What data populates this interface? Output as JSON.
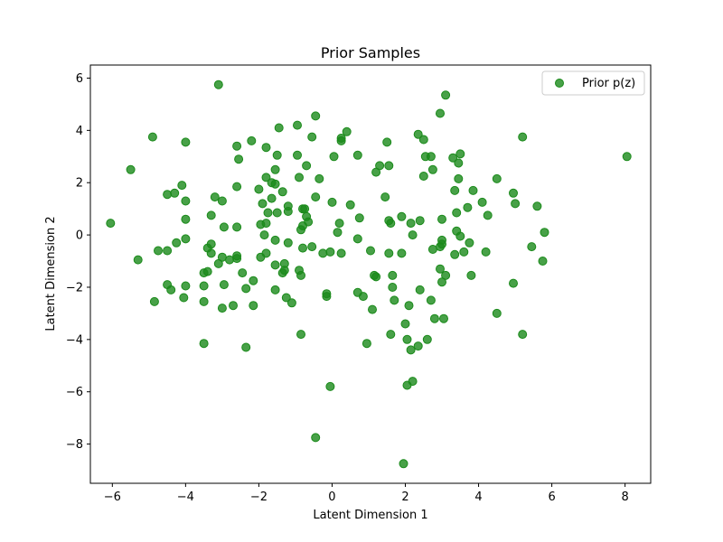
{
  "chart_data": {
    "type": "scatter",
    "title": "Prior Samples",
    "xlabel": "Latent Dimension 1",
    "ylabel": "Latent Dimension 2",
    "xlim": [
      -6.6,
      8.7
    ],
    "ylim": [
      -9.5,
      6.5
    ],
    "xticks": [
      -6,
      -4,
      -2,
      0,
      2,
      4,
      6,
      8
    ],
    "yticks": [
      -8,
      -6,
      -4,
      -2,
      0,
      2,
      4,
      6
    ],
    "xtick_labels": [
      "−6",
      "−4",
      "−2",
      "0",
      "2",
      "4",
      "6",
      "8"
    ],
    "ytick_labels": [
      "−8",
      "−6",
      "−4",
      "−2",
      "0",
      "2",
      "4",
      "6"
    ],
    "grid": false,
    "legend_position": "top-right",
    "series": [
      {
        "name": "Prior p(z)",
        "color": "#1a8a1a",
        "points": [
          [
            -3.1,
            5.75
          ],
          [
            3.1,
            5.35
          ],
          [
            -0.45,
            4.55
          ],
          [
            2.95,
            4.65
          ],
          [
            -4.9,
            3.75
          ],
          [
            -4.0,
            3.55
          ],
          [
            -1.45,
            4.1
          ],
          [
            -0.95,
            4.2
          ],
          [
            0.4,
            3.95
          ],
          [
            0.25,
            3.7
          ],
          [
            0.25,
            3.6
          ],
          [
            -0.55,
            3.75
          ],
          [
            1.5,
            3.55
          ],
          [
            2.35,
            3.85
          ],
          [
            2.5,
            3.65
          ],
          [
            -2.2,
            3.6
          ],
          [
            -1.8,
            3.35
          ],
          [
            -2.6,
            3.4
          ],
          [
            -1.5,
            3.05
          ],
          [
            -0.95,
            3.05
          ],
          [
            0.05,
            3.0
          ],
          [
            0.7,
            3.05
          ],
          [
            2.55,
            3.0
          ],
          [
            2.7,
            3.0
          ],
          [
            3.3,
            2.95
          ],
          [
            3.5,
            3.1
          ],
          [
            5.2,
            3.75
          ],
          [
            8.05,
            3.0
          ],
          [
            -5.5,
            2.5
          ],
          [
            -2.55,
            2.9
          ],
          [
            -1.55,
            2.5
          ],
          [
            -0.7,
            2.65
          ],
          [
            1.3,
            2.65
          ],
          [
            1.55,
            2.65
          ],
          [
            2.5,
            2.25
          ],
          [
            2.75,
            2.5
          ],
          [
            3.45,
            2.75
          ],
          [
            1.2,
            2.4
          ],
          [
            3.45,
            2.15
          ],
          [
            4.5,
            2.15
          ],
          [
            -4.1,
            1.9
          ],
          [
            -2.6,
            1.85
          ],
          [
            -2.0,
            1.75
          ],
          [
            -1.8,
            2.2
          ],
          [
            -1.65,
            2.0
          ],
          [
            -1.55,
            1.95
          ],
          [
            -1.35,
            1.65
          ],
          [
            -0.9,
            2.2
          ],
          [
            -0.35,
            2.15
          ],
          [
            3.35,
            1.7
          ],
          [
            3.85,
            1.7
          ],
          [
            4.95,
            1.6
          ],
          [
            -4.5,
            1.55
          ],
          [
            -4.3,
            1.6
          ],
          [
            -4.0,
            1.3
          ],
          [
            -3.2,
            1.45
          ],
          [
            -3.0,
            1.3
          ],
          [
            -1.9,
            1.2
          ],
          [
            -1.65,
            1.4
          ],
          [
            -1.2,
            1.1
          ],
          [
            -0.8,
            1.0
          ],
          [
            -0.75,
            1.0
          ],
          [
            -0.45,
            1.45
          ],
          [
            0.0,
            1.25
          ],
          [
            0.5,
            1.15
          ],
          [
            1.45,
            1.45
          ],
          [
            4.1,
            1.25
          ],
          [
            5.0,
            1.2
          ],
          [
            3.7,
            1.05
          ],
          [
            5.6,
            1.1
          ],
          [
            -3.3,
            0.75
          ],
          [
            -4.0,
            0.6
          ],
          [
            -2.6,
            0.3
          ],
          [
            -2.95,
            0.3
          ],
          [
            -1.95,
            0.4
          ],
          [
            -1.8,
            0.45
          ],
          [
            -1.75,
            0.85
          ],
          [
            -1.5,
            0.85
          ],
          [
            -1.2,
            0.9
          ],
          [
            -0.7,
            0.7
          ],
          [
            -0.65,
            0.5
          ],
          [
            -0.8,
            0.35
          ],
          [
            -0.85,
            0.2
          ],
          [
            0.2,
            0.45
          ],
          [
            0.75,
            0.65
          ],
          [
            1.55,
            0.55
          ],
          [
            1.6,
            0.45
          ],
          [
            1.9,
            0.7
          ],
          [
            2.15,
            0.45
          ],
          [
            2.4,
            0.55
          ],
          [
            3.0,
            0.6
          ],
          [
            3.4,
            0.85
          ],
          [
            4.25,
            0.75
          ],
          [
            -6.05,
            0.45
          ],
          [
            -1.85,
            0.0
          ],
          [
            -1.55,
            -0.2
          ],
          [
            -1.2,
            -0.3
          ],
          [
            -0.25,
            -0.7
          ],
          [
            0.15,
            0.1
          ],
          [
            0.7,
            -0.15
          ],
          [
            2.2,
            0.0
          ],
          [
            3.0,
            -0.2
          ],
          [
            3.4,
            0.15
          ],
          [
            3.5,
            -0.05
          ],
          [
            5.8,
            0.1
          ],
          [
            -4.75,
            -0.6
          ],
          [
            -4.5,
            -0.6
          ],
          [
            -4.25,
            -0.3
          ],
          [
            -4.0,
            -0.15
          ],
          [
            -3.4,
            -0.5
          ],
          [
            -3.3,
            -0.35
          ],
          [
            -3.3,
            -0.7
          ],
          [
            -1.8,
            -0.7
          ],
          [
            -0.8,
            -0.5
          ],
          [
            -0.55,
            -0.45
          ],
          [
            -0.05,
            -0.65
          ],
          [
            0.25,
            -0.7
          ],
          [
            1.05,
            -0.6
          ],
          [
            1.55,
            -0.7
          ],
          [
            1.9,
            -0.7
          ],
          [
            2.75,
            -0.55
          ],
          [
            2.95,
            -0.45
          ],
          [
            3.0,
            -0.35
          ],
          [
            3.35,
            -0.75
          ],
          [
            3.6,
            -0.65
          ],
          [
            3.75,
            -0.3
          ],
          [
            4.2,
            -0.65
          ],
          [
            5.45,
            -0.45
          ],
          [
            -5.3,
            -0.95
          ],
          [
            -3.0,
            -0.85
          ],
          [
            -2.8,
            -0.95
          ],
          [
            -2.6,
            -0.9
          ],
          [
            -2.6,
            -0.8
          ],
          [
            -3.1,
            -1.1
          ],
          [
            -2.45,
            -1.45
          ],
          [
            -1.95,
            -0.85
          ],
          [
            -1.55,
            -1.15
          ],
          [
            -1.3,
            -1.1
          ],
          [
            -1.3,
            -1.35
          ],
          [
            -1.35,
            -1.45
          ],
          [
            -0.9,
            -1.35
          ],
          [
            -0.85,
            -1.55
          ],
          [
            1.15,
            -1.55
          ],
          [
            1.2,
            -1.6
          ],
          [
            1.65,
            -1.55
          ],
          [
            2.95,
            -1.3
          ],
          [
            3.1,
            -1.55
          ],
          [
            3.8,
            -1.55
          ],
          [
            5.75,
            -1.0
          ],
          [
            -3.5,
            -1.45
          ],
          [
            -3.4,
            -1.4
          ],
          [
            -4.4,
            -2.1
          ],
          [
            -4.5,
            -1.9
          ],
          [
            -4.0,
            -1.95
          ],
          [
            -3.5,
            -1.95
          ],
          [
            -2.95,
            -1.9
          ],
          [
            -2.35,
            -2.05
          ],
          [
            -2.15,
            -1.75
          ],
          [
            -1.55,
            -2.1
          ],
          [
            -1.25,
            -2.4
          ],
          [
            -1.1,
            -2.6
          ],
          [
            -0.15,
            -2.25
          ],
          [
            -0.15,
            -2.35
          ],
          [
            0.7,
            -2.2
          ],
          [
            0.85,
            -2.35
          ],
          [
            1.65,
            -2.0
          ],
          [
            1.7,
            -2.5
          ],
          [
            2.1,
            -2.7
          ],
          [
            2.4,
            -2.1
          ],
          [
            2.7,
            -2.5
          ],
          [
            3.0,
            -1.8
          ],
          [
            4.95,
            -1.85
          ],
          [
            -4.85,
            -2.55
          ],
          [
            -4.05,
            -2.4
          ],
          [
            -3.5,
            -2.55
          ],
          [
            -3.0,
            -2.8
          ],
          [
            -2.7,
            -2.7
          ],
          [
            -2.15,
            -2.7
          ],
          [
            1.1,
            -2.85
          ],
          [
            2.8,
            -3.2
          ],
          [
            3.05,
            -3.2
          ],
          [
            4.5,
            -3.0
          ],
          [
            2.0,
            -3.4
          ],
          [
            -3.5,
            -4.15
          ],
          [
            -2.35,
            -4.3
          ],
          [
            -0.85,
            -3.8
          ],
          [
            0.95,
            -4.15
          ],
          [
            1.6,
            -3.8
          ],
          [
            2.05,
            -4.0
          ],
          [
            2.15,
            -4.4
          ],
          [
            2.35,
            -4.25
          ],
          [
            2.6,
            -4.0
          ],
          [
            5.2,
            -3.8
          ],
          [
            -0.05,
            -5.8
          ],
          [
            2.05,
            -5.75
          ],
          [
            2.2,
            -5.6
          ],
          [
            -0.45,
            -7.75
          ],
          [
            1.95,
            -8.75
          ]
        ]
      }
    ]
  }
}
